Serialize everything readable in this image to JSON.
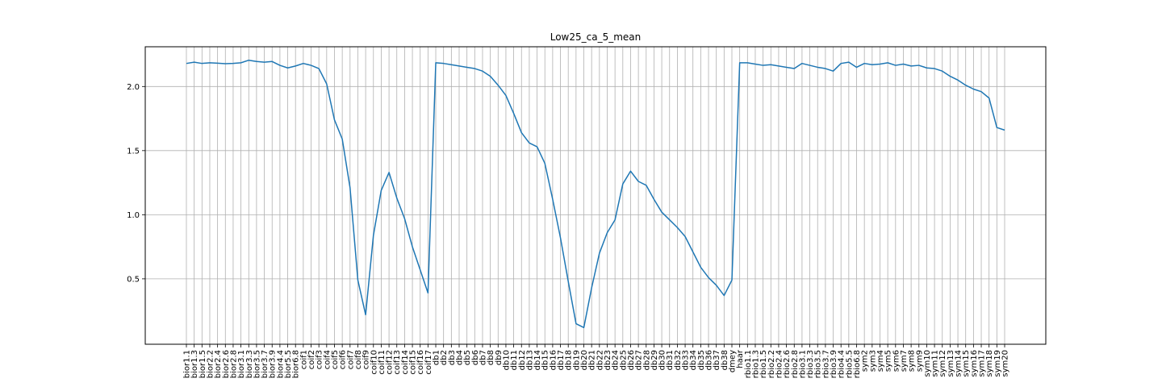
{
  "chart_data": {
    "type": "line",
    "title": "Low25_ca_5_mean",
    "xlabel": "",
    "ylabel": "",
    "grid": true,
    "ylim": [
      -0.01,
      2.31
    ],
    "yticks": [
      0.5,
      1.0,
      1.5,
      2.0
    ],
    "ytick_labels": [
      "0.5",
      "1.0",
      "1.5",
      "2.0"
    ],
    "line_color": "#1f77b4",
    "grid_color": "#b0b0b0",
    "categories": [
      "bior1.1",
      "bior1.3",
      "bior1.5",
      "bior2.2",
      "bior2.4",
      "bior2.6",
      "bior2.8",
      "bior3.1",
      "bior3.3",
      "bior3.5",
      "bior3.7",
      "bior3.9",
      "bior4.4",
      "bior5.5",
      "bior6.8",
      "coif1",
      "coif2",
      "coif3",
      "coif4",
      "coif5",
      "coif6",
      "coif7",
      "coif8",
      "coif9",
      "coif10",
      "coif11",
      "coif12",
      "coif13",
      "coif14",
      "coif15",
      "coif16",
      "coif17",
      "db1",
      "db2",
      "db3",
      "db4",
      "db5",
      "db6",
      "db7",
      "db8",
      "db9",
      "db10",
      "db11",
      "db12",
      "db13",
      "db14",
      "db15",
      "db16",
      "db17",
      "db18",
      "db19",
      "db20",
      "db21",
      "db22",
      "db23",
      "db24",
      "db25",
      "db26",
      "db27",
      "db28",
      "db29",
      "db30",
      "db31",
      "db32",
      "db33",
      "db34",
      "db35",
      "db36",
      "db37",
      "db38",
      "dmey",
      "haar",
      "rbio1.1",
      "rbio1.3",
      "rbio1.5",
      "rbio2.2",
      "rbio2.4",
      "rbio2.6",
      "rbio2.8",
      "rbio3.1",
      "rbio3.3",
      "rbio3.5",
      "rbio3.7",
      "rbio3.9",
      "rbio4.4",
      "rbio5.5",
      "rbio6.8",
      "sym2",
      "sym3",
      "sym4",
      "sym5",
      "sym6",
      "sym7",
      "sym8",
      "sym9",
      "sym10",
      "sym11",
      "sym12",
      "sym13",
      "sym14",
      "sym15",
      "sym16",
      "sym17",
      "sym18",
      "sym19",
      "sym20"
    ],
    "values": [
      2.18,
      2.19,
      2.18,
      2.185,
      2.182,
      2.178,
      2.18,
      2.185,
      2.205,
      2.195,
      2.19,
      2.195,
      2.165,
      2.145,
      2.16,
      2.18,
      2.165,
      2.14,
      2.02,
      1.74,
      1.59,
      1.21,
      0.49,
      0.22,
      0.84,
      1.19,
      1.33,
      1.13,
      0.97,
      0.75,
      0.57,
      0.39,
      2.185,
      2.18,
      2.17,
      2.16,
      2.15,
      2.14,
      2.12,
      2.08,
      2.01,
      1.93,
      1.79,
      1.64,
      1.56,
      1.53,
      1.4,
      1.12,
      0.82,
      0.48,
      0.15,
      0.12,
      0.43,
      0.7,
      0.86,
      0.96,
      1.24,
      1.34,
      1.26,
      1.23,
      1.12,
      1.02,
      0.96,
      0.9,
      0.83,
      0.71,
      0.59,
      0.51,
      0.45,
      0.37,
      0.49,
      2.185,
      2.185,
      2.175,
      2.165,
      2.17,
      2.16,
      2.15,
      2.14,
      2.18,
      2.165,
      2.15,
      2.14,
      2.12,
      2.18,
      2.19,
      2.15,
      2.18,
      2.17,
      2.175,
      2.185,
      2.165,
      2.175,
      2.16,
      2.165,
      2.145,
      2.14,
      2.12,
      2.08,
      2.05,
      2.01,
      1.98,
      1.96,
      1.91,
      1.68,
      1.66
    ]
  }
}
